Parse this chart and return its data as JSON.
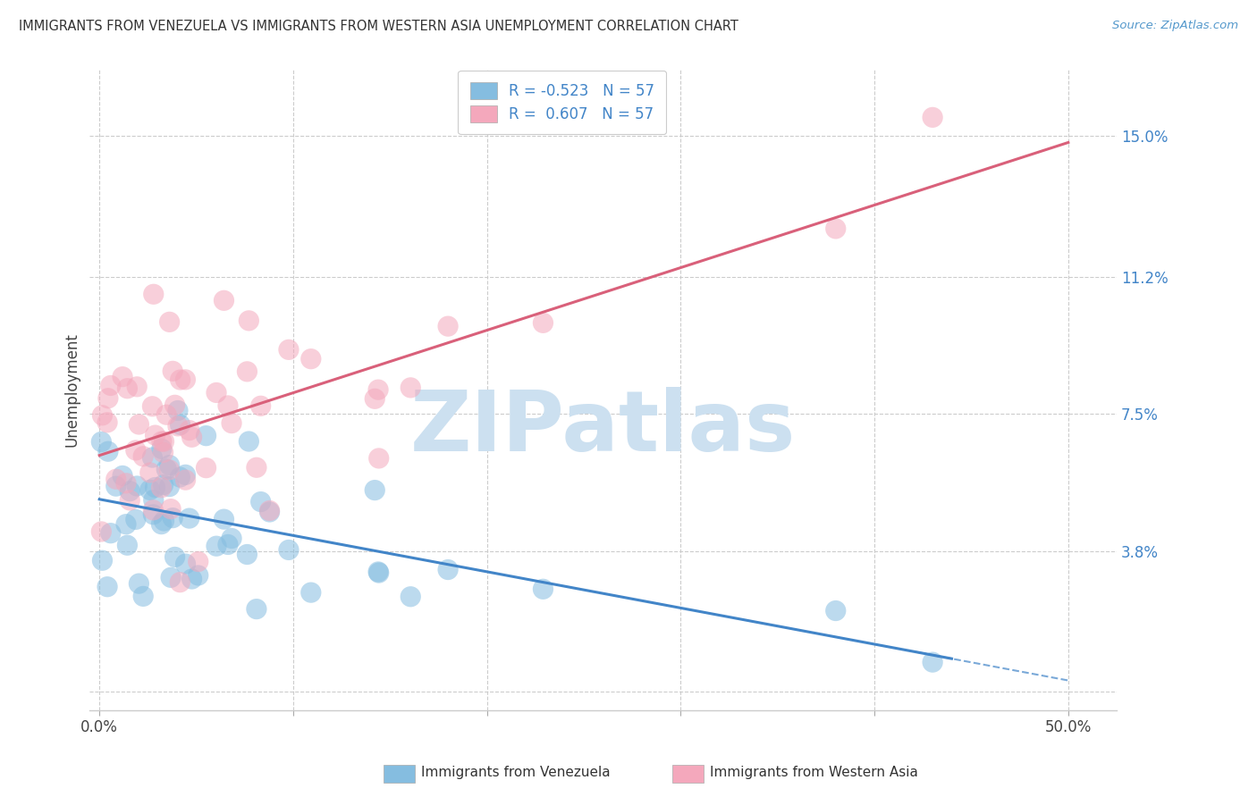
{
  "title": "IMMIGRANTS FROM VENEZUELA VS IMMIGRANTS FROM WESTERN ASIA UNEMPLOYMENT CORRELATION CHART",
  "source": "Source: ZipAtlas.com",
  "ylabel": "Unemployment",
  "y_ticks_right": [
    0.0,
    0.038,
    0.075,
    0.112,
    0.15
  ],
  "y_tick_labels_right": [
    "",
    "3.8%",
    "7.5%",
    "11.2%",
    "15.0%"
  ],
  "y_lim": [
    -0.005,
    0.168
  ],
  "x_lim": [
    -0.005,
    0.525
  ],
  "blue_color": "#85bde0",
  "pink_color": "#f4a8bc",
  "blue_line_color": "#4285c8",
  "pink_line_color": "#d9607a",
  "watermark": "ZIPatlas",
  "watermark_color": "#cce0f0",
  "background_color": "#ffffff",
  "grid_color": "#cccccc",
  "legend_blue_text": "R = -0.523   N = 57",
  "legend_pink_text": "R =  0.607   N = 57",
  "bottom_label_blue": "Immigrants from Venezuela",
  "bottom_label_pink": "Immigrants from Western Asia",
  "r_blue": -0.523,
  "r_pink": 0.607,
  "n_points": 57
}
